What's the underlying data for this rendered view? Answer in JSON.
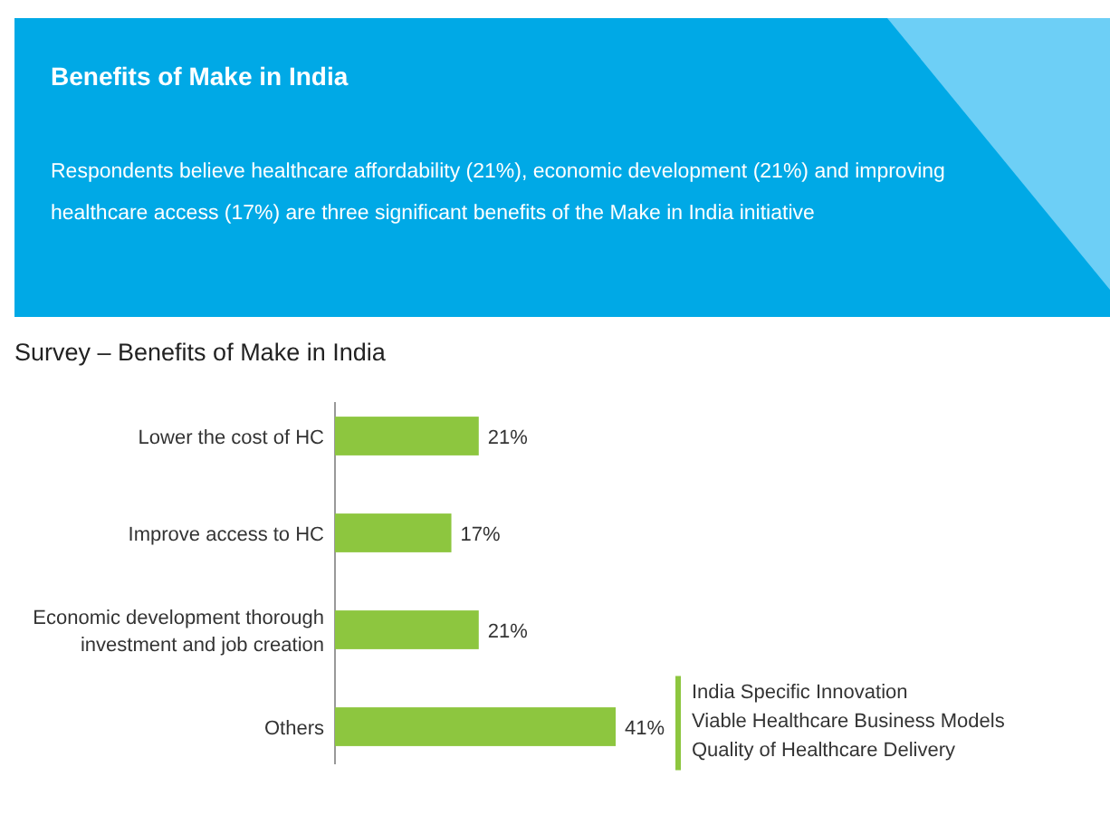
{
  "chart_data": {
    "type": "bar",
    "orientation": "horizontal",
    "title": "Benefits of Make in India",
    "subtitle": "Respondents believe healthcare affordability (21%), economic development (21%) and improving healthcare access (17%) are three significant benefits of the Make in India initiative",
    "categories": [
      "Lower the cost of HC",
      "Improve access to HC",
      "Economic development thorough investment and job creation",
      "Others"
    ],
    "values": [
      21,
      17,
      21,
      41
    ],
    "color": "#8dc63f",
    "data_labels": true,
    "value_labels": [
      "21%",
      "17%",
      "21%",
      "41%"
    ],
    "annotations": [
      "Survey – Benefits of Make in India",
      "India Specific Innovation",
      "Viable Healthcare Business Models",
      "Quality of Healthcare Delivery"
    ]
  }
}
